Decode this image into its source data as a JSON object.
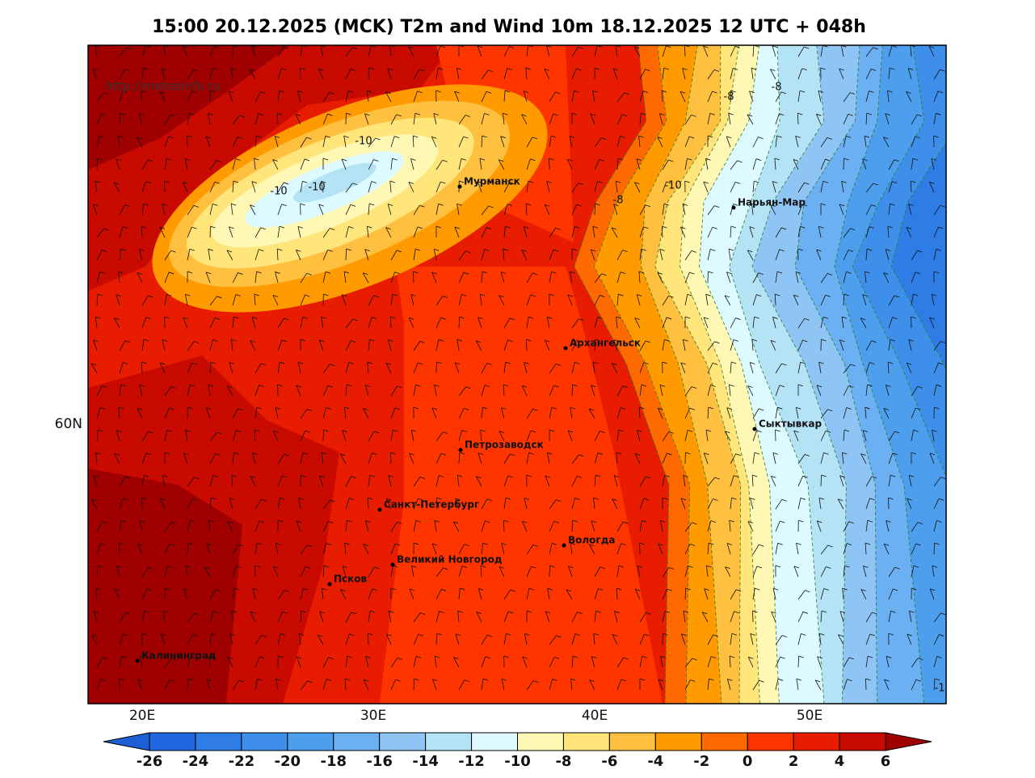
{
  "title": "15:00 20.12.2025 (MCK) T2m and Wind 10m 18.12.2025 12 UTC + 048h",
  "watermark": "http://meteoinfo.ru",
  "cities": [
    "Мурманск",
    "Нарьян-Мар",
    "Архангельск",
    "Сыктывкар",
    "Петрозаводск",
    "Санкт-Петербург",
    "Вологда",
    "Великий Новгород",
    "Псков",
    "Калининград"
  ],
  "contour_labels": [
    -10,
    -10,
    -10,
    -10,
    -8,
    -8,
    -8,
    -1
  ],
  "axis_labels": {
    "longitude": [
      "20E",
      "30E",
      "40E",
      "50E"
    ],
    "latitude": [
      "60N"
    ]
  },
  "colorbar": {
    "ticks": [
      -26,
      -24,
      -22,
      -20,
      -18,
      -16,
      -14,
      -12,
      -10,
      -8,
      -6,
      -4,
      -2,
      0,
      2,
      4,
      6
    ],
    "colors": [
      "#1c5fd6",
      "#2168e0",
      "#2e7de6",
      "#3d8fe9",
      "#4e9eee",
      "#6ab0f2",
      "#8fc5f5",
      "#b4e3f6",
      "#dcfaff",
      "#fff8b4",
      "#ffe57a",
      "#ffc040",
      "#ff9a00",
      "#ff6a00",
      "#ff3500",
      "#e81c00",
      "#c80a00",
      "#a00000"
    ]
  }
}
